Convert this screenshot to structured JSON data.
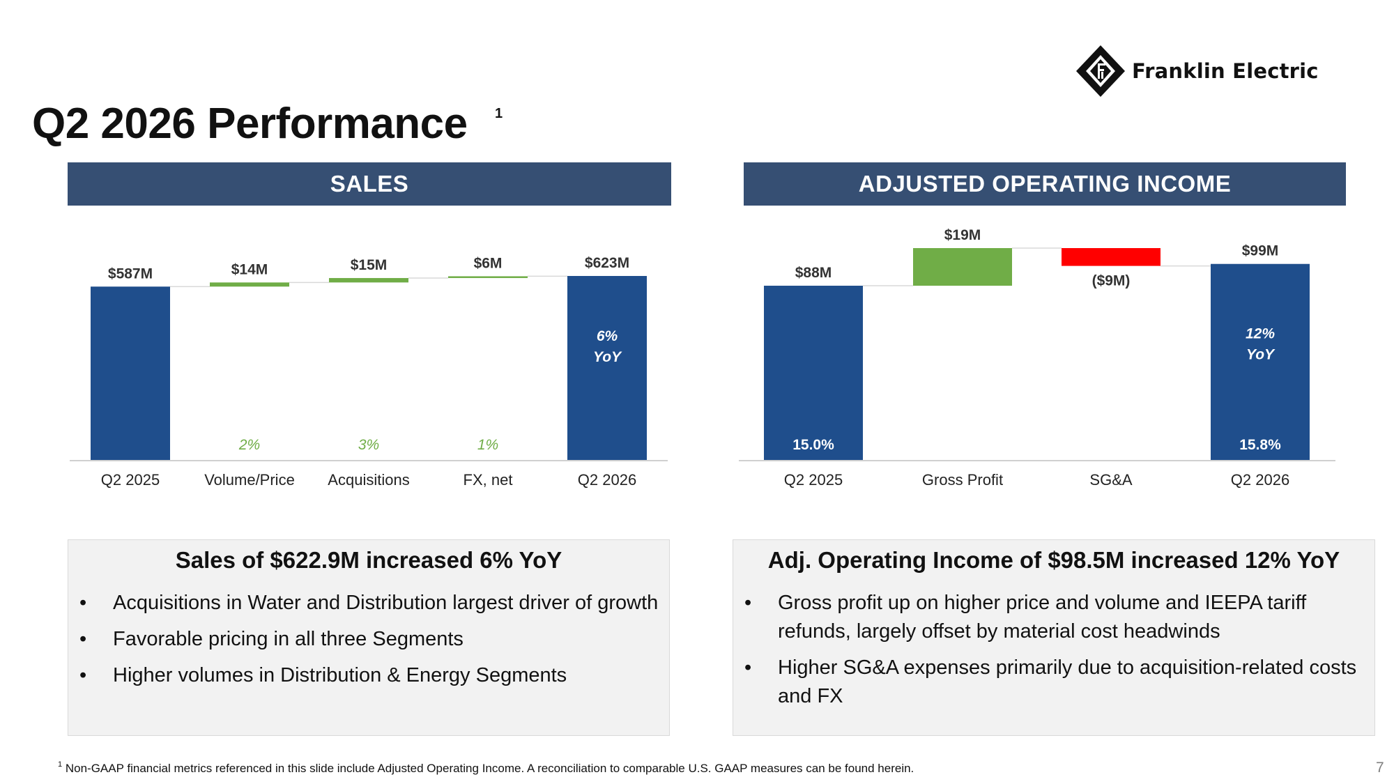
{
  "brand": {
    "name": "Franklin Electric"
  },
  "page": {
    "title": "Q2 2026 Performance",
    "title_footnote_marker": "1",
    "page_number": "7"
  },
  "colors": {
    "navy": "#1F4E8C",
    "header": "#364F73",
    "increase": "#70AD47",
    "decrease": "#FF0000"
  },
  "sales_panel": {
    "header": "SALES",
    "summary_title": "Sales of $622.9M increased 6% YoY",
    "bullets": [
      "Acquisitions in Water and Distribution largest driver of growth",
      "Favorable pricing in all three Segments",
      "Higher volumes in Distribution & Energy Segments"
    ]
  },
  "aoi_panel": {
    "header": "ADJUSTED OPERATING INCOME",
    "summary_title": "Adj. Operating Income of $98.5M increased 12% YoY",
    "bullets": [
      "Gross profit up on higher price and volume and IEEPA tariff refunds, largely offset by material cost headwinds",
      "Higher SG&A expenses primarily due to acquisition-related costs and FX"
    ]
  },
  "footnote": {
    "marker": "1",
    "text": "Non-GAAP financial metrics referenced in this slide include Adjusted Operating Income. A reconciliation to comparable U.S. GAAP measures can be found herein."
  },
  "chart_data": [
    {
      "type": "bar",
      "subtype": "waterfall",
      "categories": [
        "Q2 2025",
        "Volume/Price",
        "Acquisitions",
        "FX, net",
        "Q2 2026"
      ],
      "values": [
        587,
        14,
        15,
        6,
        623
      ],
      "kinds": [
        "total",
        "increase",
        "increase",
        "increase",
        "total"
      ],
      "value_labels": [
        "$587M",
        "$14M",
        "$15M",
        "$6M",
        "$623M"
      ],
      "pct_labels": [
        "",
        "2%",
        "3%",
        "1%",
        ""
      ],
      "inner_labels": [
        "",
        "",
        "",
        "",
        ""
      ],
      "yoy_labels": [
        [
          "",
          ""
        ],
        [
          "",
          ""
        ],
        [
          "",
          ""
        ],
        [
          "",
          ""
        ],
        [
          "6%",
          "YoY"
        ]
      ],
      "ylim": [
        0,
        623
      ]
    },
    {
      "type": "bar",
      "subtype": "waterfall",
      "categories": [
        "Q2 2025",
        "Gross Profit",
        "SG&A",
        "Q2 2026"
      ],
      "values": [
        88,
        19,
        -9,
        99
      ],
      "kinds": [
        "total",
        "increase",
        "decrease",
        "total"
      ],
      "value_labels": [
        "$88M",
        "$19M",
        "($9M)",
        "$99M"
      ],
      "pct_labels": [
        "",
        "",
        "",
        ""
      ],
      "inner_labels": [
        "15.0%",
        "",
        "",
        "15.8%"
      ],
      "yoy_labels": [
        [
          "",
          ""
        ],
        [
          "",
          ""
        ],
        [
          "",
          ""
        ],
        [
          "12%",
          "YoY"
        ]
      ],
      "ylim": [
        0,
        107
      ]
    }
  ]
}
